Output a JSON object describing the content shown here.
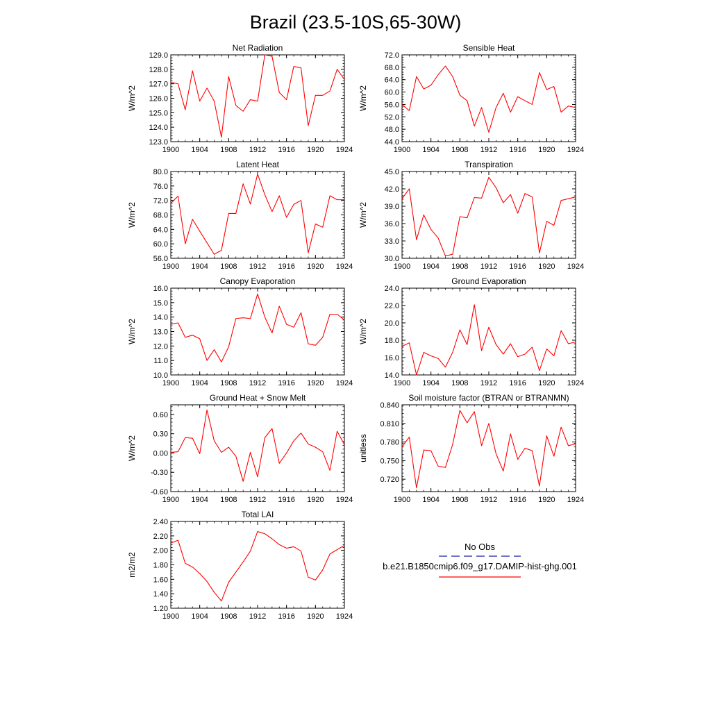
{
  "title": "Brazil (23.5-10S,65-30W)",
  "colors": {
    "model_line": "#ff0000",
    "obs_line": "#1c1ca8",
    "axis": "#000000"
  },
  "legend": {
    "obs_label": "No Obs",
    "model_label": "b.e21.B1850cmip6.f09_g17.DAMIP-hist-ghg.001"
  },
  "chart_data": [
    {
      "type": "line",
      "title": "Net Radiation",
      "xlabel": "",
      "ylabel": "W/m^2",
      "xlim": [
        1900,
        1924
      ],
      "ylim": [
        123.0,
        129.0
      ],
      "xticks": [
        1900,
        1904,
        1908,
        1912,
        1916,
        1920,
        1924
      ],
      "xtick_labels": [
        "1900",
        "1904",
        "1908",
        "1912",
        "1916",
        "1920",
        "1924"
      ],
      "yticks": [
        123.0,
        124.0,
        125.0,
        126.0,
        127.0,
        128.0,
        129.0
      ],
      "ytick_labels": [
        "123.0",
        "124.0",
        "125.0",
        "126.0",
        "127.0",
        "128.0",
        "129.0"
      ],
      "x": [
        1900,
        1901,
        1902,
        1903,
        1904,
        1905,
        1906,
        1907,
        1908,
        1909,
        1910,
        1911,
        1912,
        1913,
        1914,
        1915,
        1916,
        1917,
        1918,
        1919,
        1920,
        1921,
        1922,
        1923,
        1924
      ],
      "series": [
        {
          "values": [
            127.1,
            127.0,
            125.2,
            127.9,
            125.8,
            126.7,
            125.8,
            123.3,
            127.5,
            125.5,
            125.1,
            125.9,
            125.8,
            129.0,
            128.9,
            126.4,
            125.9,
            128.2,
            128.1,
            124.1,
            126.2,
            126.2,
            126.5,
            128.0,
            127.3
          ]
        }
      ]
    },
    {
      "type": "line",
      "title": "Sensible Heat",
      "xlabel": "",
      "ylabel": "W/m^2",
      "xlim": [
        1900,
        1924
      ],
      "ylim": [
        44.0,
        72.0
      ],
      "xticks": [
        1900,
        1904,
        1908,
        1912,
        1916,
        1920,
        1924
      ],
      "xtick_labels": [
        "1900",
        "1904",
        "1908",
        "1912",
        "1916",
        "1920",
        "1924"
      ],
      "yticks": [
        44.0,
        48.0,
        52.0,
        56.0,
        60.0,
        64.0,
        68.0,
        72.0
      ],
      "ytick_labels": [
        "44.0",
        "48.0",
        "52.0",
        "56.0",
        "60.0",
        "64.0",
        "68.0",
        "72.0"
      ],
      "x": [
        1900,
        1901,
        1902,
        1903,
        1904,
        1905,
        1906,
        1907,
        1908,
        1909,
        1910,
        1911,
        1912,
        1913,
        1914,
        1915,
        1916,
        1917,
        1918,
        1919,
        1920,
        1921,
        1922,
        1923,
        1924
      ],
      "series": [
        {
          "values": [
            56.0,
            54.0,
            65.0,
            61.0,
            62.2,
            65.6,
            68.4,
            65.0,
            59.0,
            57.2,
            49.0,
            55.0,
            47.0,
            55.0,
            59.6,
            53.5,
            58.5,
            57.2,
            56.0,
            66.3,
            60.8,
            61.8,
            53.5,
            55.5,
            55.0
          ]
        }
      ]
    },
    {
      "type": "line",
      "title": "Latent Heat",
      "xlabel": "",
      "ylabel": "W/m^2",
      "xlim": [
        1900,
        1924
      ],
      "ylim": [
        56.0,
        80.0
      ],
      "xticks": [
        1900,
        1904,
        1908,
        1912,
        1916,
        1920,
        1924
      ],
      "xtick_labels": [
        "1900",
        "1904",
        "1908",
        "1912",
        "1916",
        "1920",
        "1924"
      ],
      "yticks": [
        56.0,
        60.0,
        64.0,
        68.0,
        72.0,
        76.0,
        80.0
      ],
      "ytick_labels": [
        "56.0",
        "60.0",
        "64.0",
        "68.0",
        "72.0",
        "76.0",
        "80.0"
      ],
      "x": [
        1900,
        1901,
        1902,
        1903,
        1904,
        1905,
        1906,
        1907,
        1908,
        1909,
        1910,
        1911,
        1912,
        1913,
        1914,
        1915,
        1916,
        1917,
        1918,
        1919,
        1920,
        1921,
        1922,
        1923,
        1924
      ],
      "series": [
        {
          "values": [
            71.2,
            73.2,
            60.0,
            66.8,
            63.5,
            60.3,
            57.1,
            58.2,
            68.4,
            68.4,
            76.6,
            71.0,
            79.3,
            73.6,
            68.9,
            73.3,
            67.3,
            70.9,
            72.0,
            57.5,
            65.5,
            64.6,
            73.3,
            72.2,
            72.2
          ]
        }
      ]
    },
    {
      "type": "line",
      "title": "Transpiration",
      "xlabel": "",
      "ylabel": "W/m^2",
      "xlim": [
        1900,
        1924
      ],
      "ylim": [
        30.0,
        45.0
      ],
      "xticks": [
        1900,
        1904,
        1908,
        1912,
        1916,
        1920,
        1924
      ],
      "xtick_labels": [
        "1900",
        "1904",
        "1908",
        "1912",
        "1916",
        "1920",
        "1924"
      ],
      "yticks": [
        30.0,
        33.0,
        36.0,
        39.0,
        42.0,
        45.0
      ],
      "ytick_labels": [
        "30.0",
        "33.0",
        "36.0",
        "39.0",
        "42.0",
        "45.0"
      ],
      "x": [
        1900,
        1901,
        1902,
        1903,
        1904,
        1905,
        1906,
        1907,
        1908,
        1909,
        1910,
        1911,
        1912,
        1913,
        1914,
        1915,
        1916,
        1917,
        1918,
        1919,
        1920,
        1921,
        1922,
        1923,
        1924
      ],
      "series": [
        {
          "values": [
            40.3,
            42.0,
            33.2,
            37.5,
            35.0,
            33.5,
            30.4,
            30.7,
            37.2,
            37.0,
            40.5,
            40.4,
            44.0,
            42.2,
            39.6,
            41.0,
            37.8,
            41.2,
            40.6,
            30.9,
            36.4,
            35.7,
            40.0,
            40.3,
            40.6
          ]
        }
      ]
    },
    {
      "type": "line",
      "title": "Canopy Evaporation",
      "xlabel": "",
      "ylabel": "W/m^2",
      "xlim": [
        1900,
        1924
      ],
      "ylim": [
        10.0,
        16.0
      ],
      "xticks": [
        1900,
        1904,
        1908,
        1912,
        1916,
        1920,
        1924
      ],
      "xtick_labels": [
        "1900",
        "1904",
        "1908",
        "1912",
        "1916",
        "1920",
        "1924"
      ],
      "yticks": [
        10.0,
        11.0,
        12.0,
        13.0,
        14.0,
        15.0,
        16.0
      ],
      "ytick_labels": [
        "10.0",
        "11.0",
        "12.0",
        "13.0",
        "14.0",
        "15.0",
        "16.0"
      ],
      "x": [
        1900,
        1901,
        1902,
        1903,
        1904,
        1905,
        1906,
        1907,
        1908,
        1909,
        1910,
        1911,
        1912,
        1913,
        1914,
        1915,
        1916,
        1917,
        1918,
        1919,
        1920,
        1921,
        1922,
        1923,
        1924
      ],
      "series": [
        {
          "values": [
            13.5,
            13.6,
            12.6,
            12.75,
            12.5,
            11.0,
            11.75,
            10.9,
            11.95,
            13.9,
            13.95,
            13.9,
            15.6,
            14.0,
            12.9,
            14.75,
            13.5,
            13.3,
            14.3,
            12.15,
            12.05,
            12.6,
            14.2,
            14.2,
            13.8
          ]
        }
      ]
    },
    {
      "type": "line",
      "title": "Ground Evaporation",
      "xlabel": "",
      "ylabel": "W/m^2",
      "xlim": [
        1900,
        1924
      ],
      "ylim": [
        14.0,
        24.0
      ],
      "xticks": [
        1900,
        1904,
        1908,
        1912,
        1916,
        1920,
        1924
      ],
      "xtick_labels": [
        "1900",
        "1904",
        "1908",
        "1912",
        "1916",
        "1920",
        "1924"
      ],
      "yticks": [
        14.0,
        16.0,
        18.0,
        20.0,
        22.0,
        24.0
      ],
      "ytick_labels": [
        "14.0",
        "16.0",
        "18.0",
        "20.0",
        "22.0",
        "24.0"
      ],
      "x": [
        1900,
        1901,
        1902,
        1903,
        1904,
        1905,
        1906,
        1907,
        1908,
        1909,
        1910,
        1911,
        1912,
        1913,
        1914,
        1915,
        1916,
        1917,
        1918,
        1919,
        1920,
        1921,
        1922,
        1923,
        1924
      ],
      "series": [
        {
          "values": [
            17.3,
            17.7,
            14.0,
            16.6,
            16.2,
            15.9,
            14.9,
            16.6,
            19.2,
            17.5,
            22.1,
            16.8,
            19.5,
            17.5,
            16.4,
            17.6,
            16.1,
            16.4,
            17.2,
            14.5,
            17.0,
            16.2,
            19.1,
            17.6,
            17.8
          ]
        }
      ]
    },
    {
      "type": "line",
      "title": "Ground Heat + Snow Melt",
      "xlabel": "",
      "ylabel": "W/m^2",
      "xlim": [
        1900,
        1924
      ],
      "ylim": [
        -0.6,
        0.75
      ],
      "xticks": [
        1900,
        1904,
        1908,
        1912,
        1916,
        1920,
        1924
      ],
      "xtick_labels": [
        "1900",
        "1904",
        "1908",
        "1912",
        "1916",
        "1920",
        "1924"
      ],
      "yticks": [
        -0.6,
        -0.3,
        0.0,
        0.3,
        0.6
      ],
      "ytick_labels": [
        "-0.60",
        "-0.30",
        "0.00",
        "0.30",
        "0.60"
      ],
      "x": [
        1900,
        1901,
        1902,
        1903,
        1904,
        1905,
        1906,
        1907,
        1908,
        1909,
        1910,
        1911,
        1912,
        1913,
        1914,
        1915,
        1916,
        1917,
        1918,
        1919,
        1920,
        1921,
        1922,
        1923,
        1924
      ],
      "series": [
        {
          "values": [
            0.01,
            0.02,
            0.24,
            0.23,
            -0.01,
            0.67,
            0.19,
            0.01,
            0.09,
            -0.05,
            -0.44,
            0.01,
            -0.37,
            0.24,
            0.38,
            -0.16,
            0.0,
            0.19,
            0.31,
            0.14,
            0.09,
            0.02,
            -0.27,
            0.34,
            0.13
          ]
        }
      ]
    },
    {
      "type": "line",
      "title": "Soil moisture factor (BTRAN or BTRANMN)",
      "xlabel": "",
      "ylabel": "unitless",
      "xlim": [
        1900,
        1924
      ],
      "ylim": [
        0.7,
        0.84
      ],
      "xticks": [
        1900,
        1904,
        1908,
        1912,
        1916,
        1920,
        1924
      ],
      "xtick_labels": [
        "1900",
        "1904",
        "1908",
        "1912",
        "1916",
        "1920",
        "1924"
      ],
      "yticks": [
        0.72,
        0.75,
        0.78,
        0.81,
        0.84
      ],
      "ytick_labels": [
        "0.720",
        "0.750",
        "0.780",
        "0.810",
        "0.840"
      ],
      "x": [
        1900,
        1901,
        1902,
        1903,
        1904,
        1905,
        1906,
        1907,
        1908,
        1909,
        1910,
        1911,
        1912,
        1913,
        1914,
        1915,
        1916,
        1917,
        1918,
        1919,
        1920,
        1921,
        1922,
        1923,
        1924
      ],
      "series": [
        {
          "values": [
            0.772,
            0.788,
            0.706,
            0.767,
            0.766,
            0.741,
            0.739,
            0.776,
            0.831,
            0.811,
            0.829,
            0.774,
            0.81,
            0.761,
            0.733,
            0.793,
            0.752,
            0.77,
            0.766,
            0.709,
            0.79,
            0.757,
            0.804,
            0.774,
            0.777
          ]
        }
      ]
    },
    {
      "type": "line",
      "title": "Total LAI",
      "xlabel": "",
      "ylabel": "m2/m2",
      "xlim": [
        1900,
        1924
      ],
      "ylim": [
        1.2,
        2.4
      ],
      "xticks": [
        1900,
        1904,
        1908,
        1912,
        1916,
        1920,
        1924
      ],
      "xtick_labels": [
        "1900",
        "1904",
        "1908",
        "1912",
        "1916",
        "1920",
        "1924"
      ],
      "yticks": [
        1.2,
        1.4,
        1.6,
        1.8,
        2.0,
        2.2,
        2.4
      ],
      "ytick_labels": [
        "1.20",
        "1.40",
        "1.60",
        "1.80",
        "2.00",
        "2.20",
        "2.40"
      ],
      "x": [
        1900,
        1901,
        1902,
        1903,
        1904,
        1905,
        1906,
        1907,
        1908,
        1909,
        1910,
        1911,
        1912,
        1913,
        1914,
        1915,
        1916,
        1917,
        1918,
        1919,
        1920,
        1921,
        1922,
        1923,
        1924
      ],
      "series": [
        {
          "values": [
            2.1,
            2.14,
            1.82,
            1.77,
            1.68,
            1.57,
            1.42,
            1.3,
            1.56,
            1.7,
            1.84,
            1.99,
            2.26,
            2.23,
            2.16,
            2.08,
            2.03,
            2.05,
            1.99,
            1.63,
            1.59,
            1.73,
            1.95,
            2.01,
            2.07
          ]
        }
      ]
    }
  ]
}
